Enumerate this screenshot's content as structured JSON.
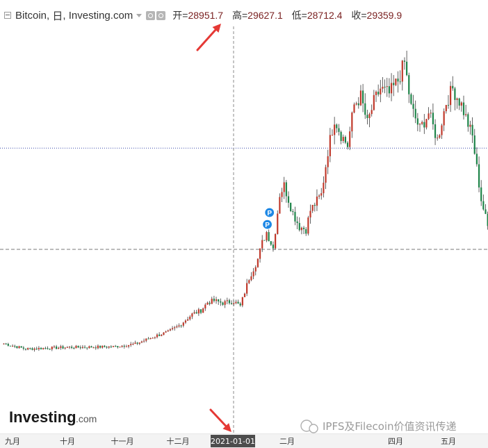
{
  "header": {
    "symbol": "Bitcoin",
    "interval": "日",
    "source": "Investing.com",
    "ohlc": [
      {
        "label": "开=",
        "value": "28951.7"
      },
      {
        "label": "高=",
        "value": "29627.1"
      },
      {
        "label": "低=",
        "value": "28712.4"
      },
      {
        "label": "收=",
        "value": "29359.9"
      }
    ]
  },
  "colors": {
    "up": "#c0392b",
    "down": "#1e8449",
    "wick": "#3a3a3a",
    "marker": "#1e88e5",
    "annotation": "#e53935"
  },
  "chart_data": {
    "type": "candlestick",
    "x_ticks": [
      "九月",
      "十月",
      "十一月",
      "十二月",
      "2021-01-01",
      "二月",
      "四月",
      "五月"
    ],
    "crosshair_date": "2021-01-01",
    "close_anchors": [
      [
        0,
        11400
      ],
      [
        10,
        10400
      ],
      [
        30,
        10700
      ],
      [
        50,
        10800
      ],
      [
        60,
        11300
      ],
      [
        70,
        12900
      ],
      [
        75,
        13500
      ],
      [
        80,
        14700
      ],
      [
        86,
        16800
      ],
      [
        90,
        17500
      ],
      [
        93,
        19000
      ],
      [
        96,
        19300
      ],
      [
        100,
        18900
      ],
      [
        105,
        19200
      ],
      [
        108,
        18300
      ],
      [
        112,
        23500
      ],
      [
        116,
        27000
      ],
      [
        118,
        30000
      ],
      [
        120,
        32000
      ],
      [
        123,
        29000
      ],
      [
        126,
        39000
      ],
      [
        128,
        40600
      ],
      [
        132,
        35500
      ],
      [
        135,
        33000
      ],
      [
        138,
        32500
      ],
      [
        140,
        36000
      ],
      [
        145,
        38900
      ],
      [
        148,
        47000
      ],
      [
        151,
        53000
      ],
      [
        154,
        50000
      ],
      [
        157,
        48000
      ],
      [
        160,
        55500
      ],
      [
        163,
        57000
      ],
      [
        166,
        52000
      ],
      [
        169,
        56000
      ],
      [
        172,
        58500
      ],
      [
        176,
        57500
      ],
      [
        180,
        60000
      ],
      [
        183,
        63300
      ],
      [
        186,
        55000
      ],
      [
        190,
        51000
      ],
      [
        194,
        54000
      ],
      [
        198,
        49000
      ],
      [
        202,
        56000
      ],
      [
        205,
        58500
      ],
      [
        209,
        55500
      ],
      [
        214,
        49600
      ],
      [
        218,
        38000
      ],
      [
        221,
        33000
      ],
      [
        222,
        37500
      ]
    ],
    "markers": [
      {
        "day": 117,
        "price": 33400,
        "label": "P"
      },
      {
        "day": 118,
        "price": 35600,
        "label": "P"
      }
    ],
    "price_range": [
      3000,
      70000
    ],
    "horizontal_levels": [
      {
        "price": 47500,
        "style": "dotted",
        "color": "#3949ab"
      },
      {
        "price": 28800,
        "style": "dashed",
        "color": "#777777"
      }
    ]
  },
  "watermark": {
    "brand": "Investing",
    "suffix": ".com",
    "credit": "IPFS及Filecoin价值资讯传递"
  }
}
